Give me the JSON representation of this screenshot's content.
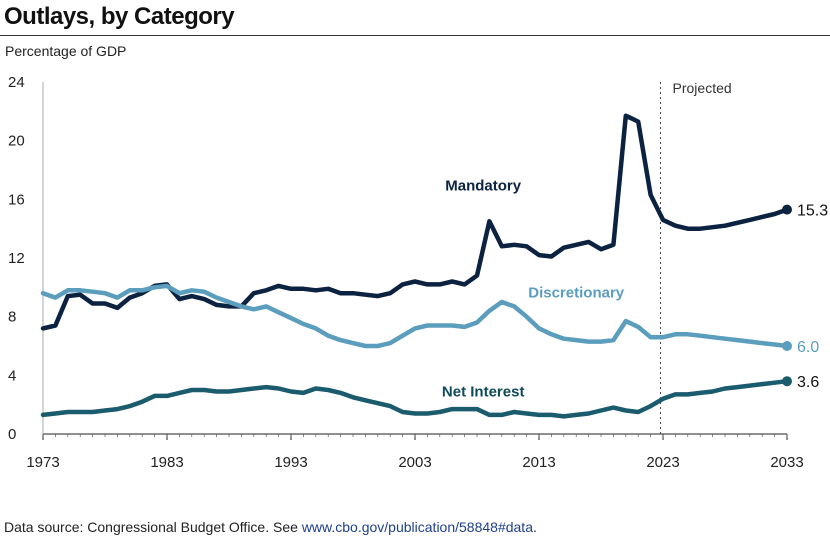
{
  "title": "Outlays, by Category",
  "source": {
    "prefix": "Data source: Congressional Budget Office. See ",
    "link": "www.cbo.gov/publication/58848#data",
    "suffix": "."
  },
  "chart_data": {
    "type": "line",
    "ylabel": "Percentage of GDP",
    "xlabel": "",
    "xlim": [
      1973,
      2033
    ],
    "ylim": [
      0,
      24
    ],
    "yticks": [
      0,
      4,
      8,
      12,
      16,
      20,
      24
    ],
    "xticks": [
      1973,
      1983,
      1993,
      2003,
      2013,
      2023,
      2033
    ],
    "projection_start": 2022.8,
    "projection_label": "Projected",
    "series": [
      {
        "name": "Mandatory",
        "color": "#0b2240",
        "end_label": "15.3",
        "x": [
          1973,
          1974,
          1975,
          1976,
          1977,
          1978,
          1979,
          1980,
          1981,
          1982,
          1983,
          1984,
          1985,
          1986,
          1987,
          1988,
          1989,
          1990,
          1991,
          1992,
          1993,
          1994,
          1995,
          1996,
          1997,
          1998,
          1999,
          2000,
          2001,
          2002,
          2003,
          2004,
          2005,
          2006,
          2007,
          2008,
          2009,
          2010,
          2011,
          2012,
          2013,
          2014,
          2015,
          2016,
          2017,
          2018,
          2019,
          2020,
          2021,
          2022,
          2023,
          2024,
          2025,
          2026,
          2027,
          2028,
          2029,
          2030,
          2031,
          2032,
          2033
        ],
        "values": [
          7.2,
          7.4,
          9.4,
          9.5,
          8.9,
          8.9,
          8.6,
          9.3,
          9.6,
          10.1,
          10.2,
          9.2,
          9.4,
          9.2,
          8.8,
          8.7,
          8.7,
          9.6,
          9.8,
          10.1,
          9.9,
          9.9,
          9.8,
          9.9,
          9.6,
          9.6,
          9.5,
          9.4,
          9.6,
          10.2,
          10.4,
          10.2,
          10.2,
          10.4,
          10.2,
          10.8,
          14.5,
          12.8,
          12.9,
          12.8,
          12.2,
          12.1,
          12.7,
          12.9,
          13.1,
          12.6,
          12.9,
          21.7,
          21.3,
          16.3,
          14.6,
          14.2,
          14.0,
          14.0,
          14.1,
          14.2,
          14.4,
          14.6,
          14.8,
          15.0,
          15.3
        ]
      },
      {
        "name": "Discretionary",
        "color": "#5b9dbd",
        "end_label": "6.0",
        "x": [
          1973,
          1974,
          1975,
          1976,
          1977,
          1978,
          1979,
          1980,
          1981,
          1982,
          1983,
          1984,
          1985,
          1986,
          1987,
          1988,
          1989,
          1990,
          1991,
          1992,
          1993,
          1994,
          1995,
          1996,
          1997,
          1998,
          1999,
          2000,
          2001,
          2002,
          2003,
          2004,
          2005,
          2006,
          2007,
          2008,
          2009,
          2010,
          2011,
          2012,
          2013,
          2014,
          2015,
          2016,
          2017,
          2018,
          2019,
          2020,
          2021,
          2022,
          2023,
          2024,
          2025,
          2026,
          2027,
          2028,
          2029,
          2030,
          2031,
          2032,
          2033
        ],
        "values": [
          9.6,
          9.3,
          9.8,
          9.8,
          9.7,
          9.6,
          9.3,
          9.8,
          9.8,
          10.0,
          10.1,
          9.6,
          9.8,
          9.7,
          9.3,
          9.0,
          8.7,
          8.5,
          8.7,
          8.3,
          7.9,
          7.5,
          7.2,
          6.7,
          6.4,
          6.2,
          6.0,
          6.0,
          6.2,
          6.7,
          7.2,
          7.4,
          7.4,
          7.4,
          7.3,
          7.6,
          8.4,
          9.0,
          8.7,
          8.0,
          7.2,
          6.8,
          6.5,
          6.4,
          6.3,
          6.3,
          6.4,
          7.7,
          7.3,
          6.6,
          6.6,
          6.8,
          6.8,
          6.7,
          6.6,
          6.5,
          6.4,
          6.3,
          6.2,
          6.1,
          6.0
        ]
      },
      {
        "name": "Net Interest",
        "color": "#1b5b6e",
        "end_label": "3.6",
        "x": [
          1973,
          1974,
          1975,
          1976,
          1977,
          1978,
          1979,
          1980,
          1981,
          1982,
          1983,
          1984,
          1985,
          1986,
          1987,
          1988,
          1989,
          1990,
          1991,
          1992,
          1993,
          1994,
          1995,
          1996,
          1997,
          1998,
          1999,
          2000,
          2001,
          2002,
          2003,
          2004,
          2005,
          2006,
          2007,
          2008,
          2009,
          2010,
          2011,
          2012,
          2013,
          2014,
          2015,
          2016,
          2017,
          2018,
          2019,
          2020,
          2021,
          2022,
          2023,
          2024,
          2025,
          2026,
          2027,
          2028,
          2029,
          2030,
          2031,
          2032,
          2033
        ],
        "values": [
          1.3,
          1.4,
          1.5,
          1.5,
          1.5,
          1.6,
          1.7,
          1.9,
          2.2,
          2.6,
          2.6,
          2.8,
          3.0,
          3.0,
          2.9,
          2.9,
          3.0,
          3.1,
          3.2,
          3.1,
          2.9,
          2.8,
          3.1,
          3.0,
          2.8,
          2.5,
          2.3,
          2.1,
          1.9,
          1.5,
          1.4,
          1.4,
          1.5,
          1.7,
          1.7,
          1.7,
          1.3,
          1.3,
          1.5,
          1.4,
          1.3,
          1.3,
          1.2,
          1.3,
          1.4,
          1.6,
          1.8,
          1.6,
          1.5,
          1.9,
          2.4,
          2.7,
          2.7,
          2.8,
          2.9,
          3.1,
          3.2,
          3.3,
          3.4,
          3.5,
          3.6
        ]
      }
    ],
    "label_positions": {
      "Mandatory": "above line near 2009",
      "Discretionary": "above line near 2016",
      "Net Interest": "above line near 2009"
    }
  }
}
